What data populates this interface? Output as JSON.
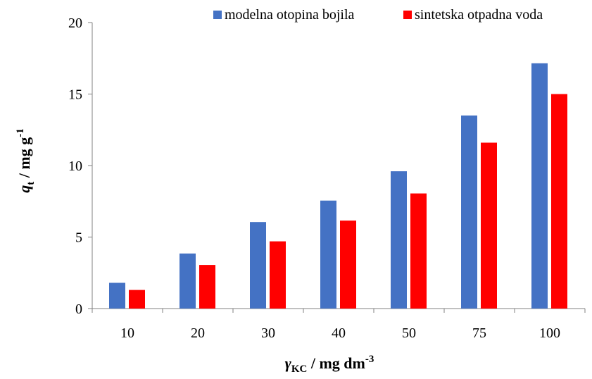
{
  "chart_data": {
    "type": "bar",
    "categories": [
      "10",
      "20",
      "30",
      "40",
      "50",
      "75",
      "100"
    ],
    "series": [
      {
        "name": "modelna otopina bojila",
        "color": "#4472C4",
        "values": [
          1.8,
          3.85,
          6.05,
          7.55,
          9.6,
          13.5,
          17.15
        ]
      },
      {
        "name": "sintetska otpadna voda",
        "color": "#FF0000",
        "values": [
          1.3,
          3.05,
          4.7,
          6.15,
          8.05,
          11.6,
          15.0
        ]
      }
    ],
    "ylim": [
      0,
      20
    ],
    "yticks": [
      0,
      5,
      10,
      15,
      20
    ],
    "ylabel": {
      "main": "q",
      "sub": "t",
      "unit": " / mg g",
      "sup": "-1"
    },
    "xlabel": {
      "main": "γ",
      "sub": "KC",
      "unit": " / mg dm",
      "sup": "-3"
    },
    "legend_position": "top-right",
    "grid": false
  }
}
